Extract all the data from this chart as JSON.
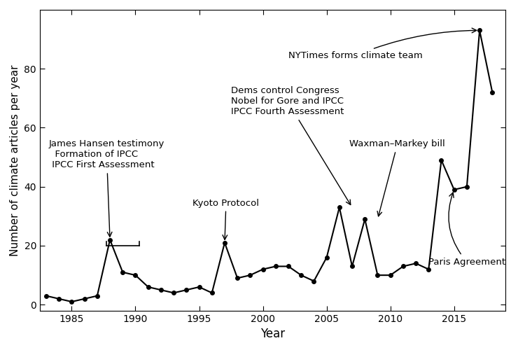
{
  "years": [
    1983,
    1984,
    1985,
    1986,
    1987,
    1988,
    1989,
    1990,
    1991,
    1992,
    1993,
    1994,
    1995,
    1996,
    1997,
    1998,
    1999,
    2000,
    2001,
    2002,
    2003,
    2004,
    2005,
    2006,
    2007,
    2008,
    2009,
    2010,
    2011,
    2012,
    2013,
    2014,
    2015,
    2016,
    2017,
    2018
  ],
  "values": [
    3,
    2,
    1,
    2,
    3,
    22,
    11,
    10,
    6,
    5,
    4,
    5,
    6,
    4,
    21,
    9,
    10,
    12,
    13,
    13,
    10,
    8,
    16,
    33,
    13,
    29,
    10,
    10,
    13,
    14,
    12,
    49,
    39,
    40,
    93,
    72
  ],
  "xlabel": "Year",
  "ylabel": "Number of climate articles per year",
  "ylim": [
    -2,
    100
  ],
  "xlim": [
    1982.5,
    2019
  ],
  "yticks": [
    0,
    20,
    40,
    60,
    80
  ],
  "xticks": [
    1985,
    1990,
    1995,
    2000,
    2005,
    2010,
    2015
  ],
  "line_color": "black",
  "marker_size": 4,
  "bg_color": "white"
}
